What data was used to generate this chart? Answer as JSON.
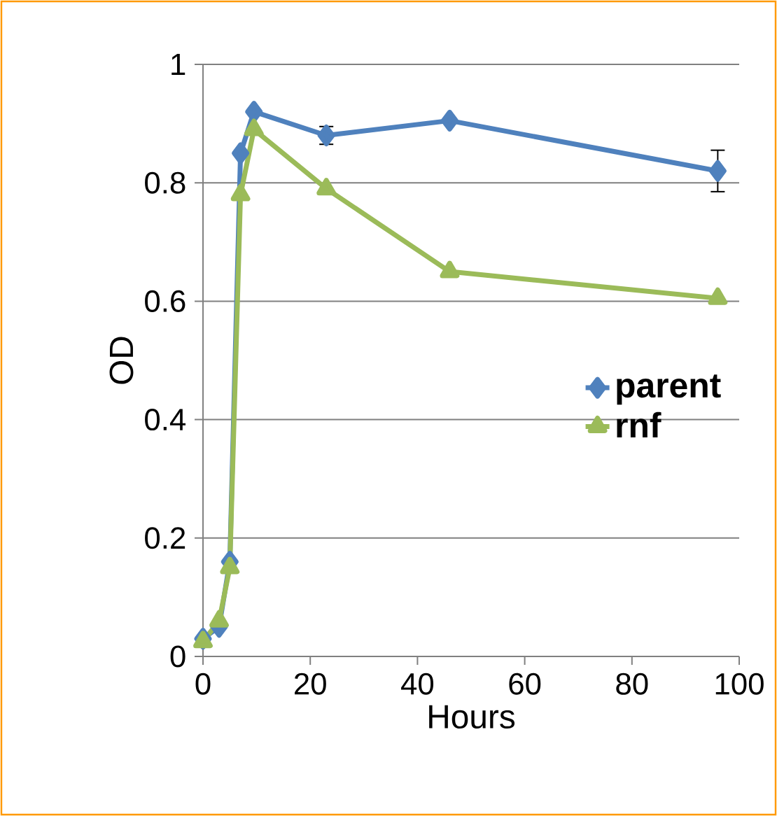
{
  "chart_data": {
    "type": "line",
    "xlabel": "Hours",
    "ylabel": "OD",
    "x": [
      0,
      3,
      5,
      7,
      9.5,
      23,
      46,
      96
    ],
    "series": [
      {
        "name": "parent",
        "color": "#4f81bd",
        "marker": "diamond",
        "values": [
          0.03,
          0.05,
          0.16,
          0.85,
          0.92,
          0.88,
          0.905,
          0.82
        ],
        "errors": [
          null,
          null,
          null,
          null,
          null,
          0.015,
          null,
          0.035
        ]
      },
      {
        "name": "rnf",
        "color": "#9bbb59",
        "marker": "triangle",
        "values": [
          0.025,
          0.06,
          0.15,
          0.78,
          0.89,
          0.79,
          0.65,
          0.605
        ]
      }
    ],
    "xlim": [
      0,
      100
    ],
    "xticks": [
      0,
      20,
      40,
      60,
      80,
      100
    ],
    "ylim": [
      0,
      1
    ],
    "yticks": [
      0,
      0.2,
      0.4,
      0.6,
      0.8,
      1
    ],
    "grid": "y",
    "legend": "center right",
    "line_style": "solid"
  }
}
